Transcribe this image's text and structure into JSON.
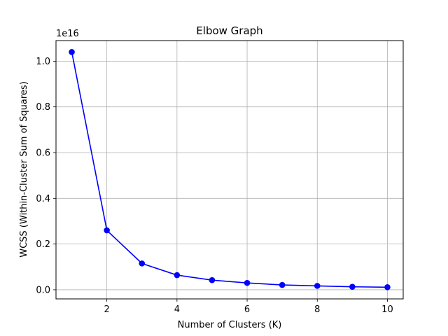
{
  "chart_data": {
    "type": "line",
    "title": "Elbow Graph",
    "xlabel": "Number of Clusters (K)",
    "ylabel": "WCSS (Within-Cluster Sum of Squares)",
    "offset_text": "1e16",
    "x": [
      1,
      2,
      3,
      4,
      5,
      6,
      7,
      8,
      9,
      10
    ],
    "series": [
      {
        "color": "#0000ff",
        "values": [
          1.04,
          0.26,
          0.115,
          0.064,
          0.042,
          0.03,
          0.021,
          0.017,
          0.013,
          0.011
        ]
      }
    ],
    "x_ticks": [
      2,
      4,
      6,
      8,
      10
    ],
    "x_tick_labels": [
      "2",
      "4",
      "6",
      "8",
      "10"
    ],
    "y_ticks": [
      0.0,
      0.2,
      0.4,
      0.6,
      0.8,
      1.0
    ],
    "y_tick_labels": [
      "0.0",
      "0.2",
      "0.4",
      "0.6",
      "0.8",
      "1.0"
    ],
    "xlim": [
      0.55,
      10.45
    ],
    "ylim": [
      -0.04,
      1.09
    ],
    "grid": true,
    "marker": "circle"
  }
}
